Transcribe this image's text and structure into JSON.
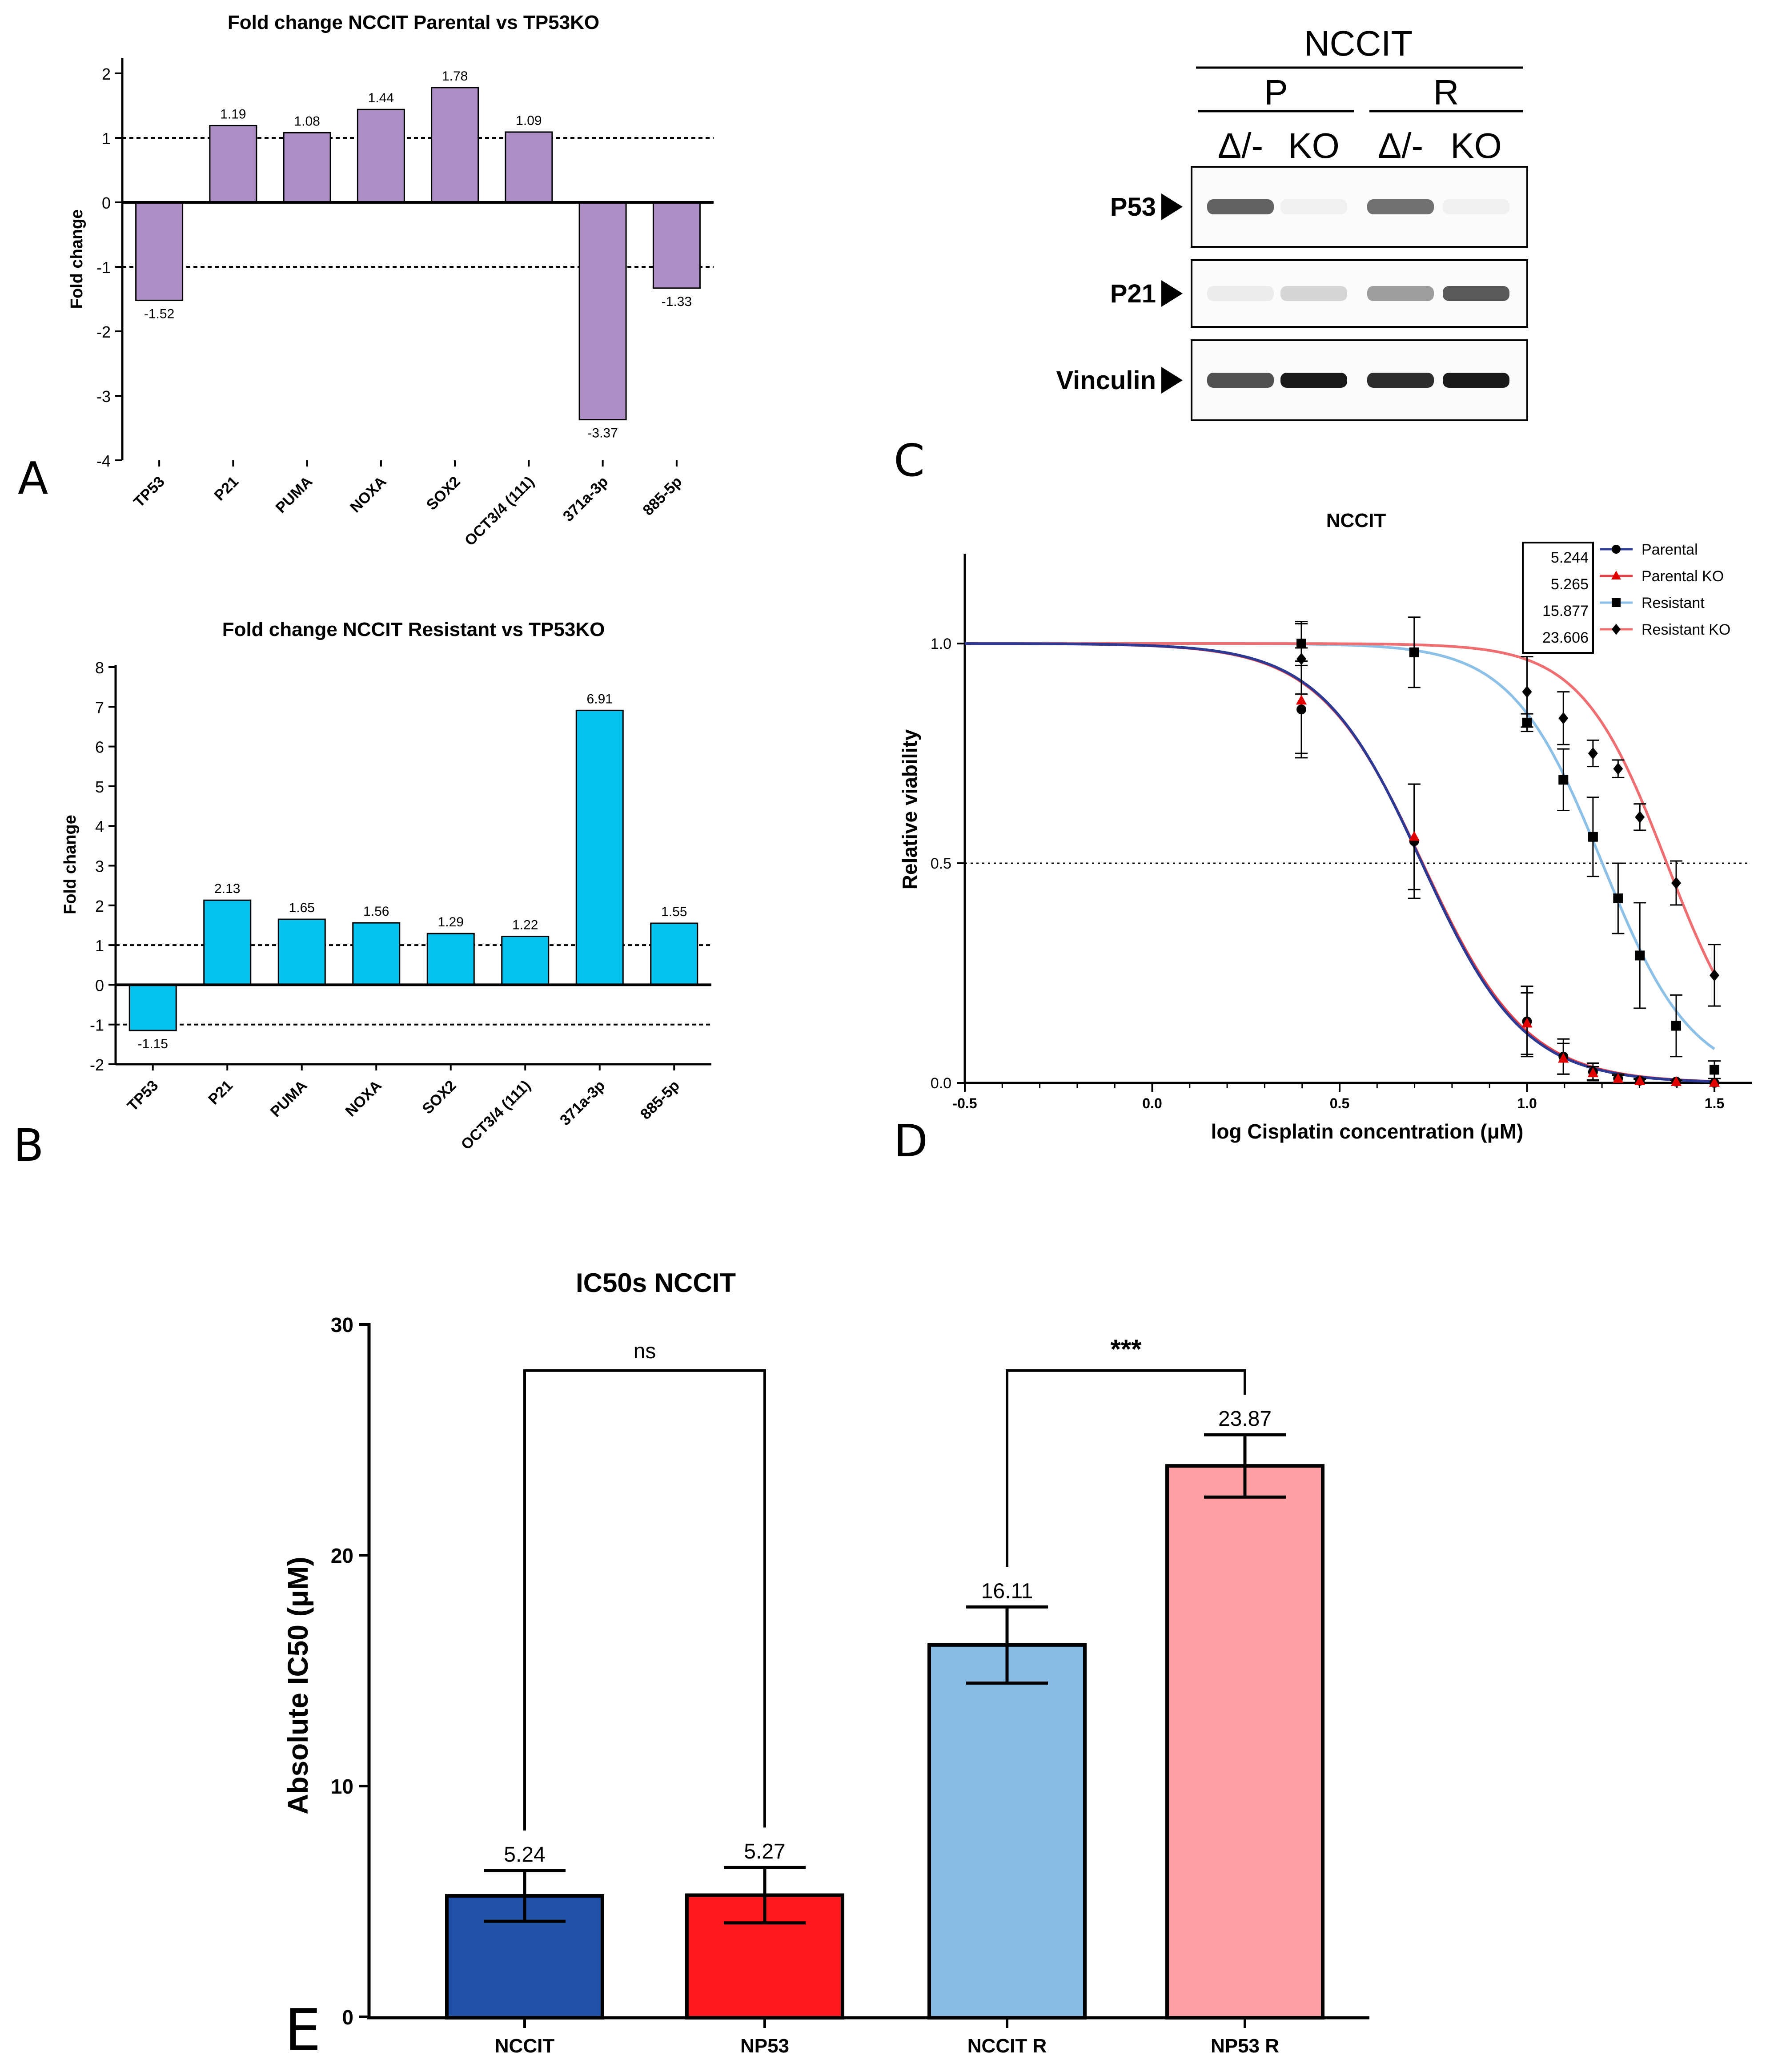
{
  "panel_labels": {
    "a": "A",
    "b": "B",
    "c": "C",
    "d": "D",
    "e": "E"
  },
  "colors": {
    "purple": "#AC8DC4",
    "cyan": "#06C2EE",
    "navy": "#2152A8",
    "red": "#FF1A1F",
    "lightblue": "#86BBE4",
    "pink": "#FF9FA4",
    "curve_navy": "#2C3A94",
    "curve_red": "#EE6E72",
    "curve_blue": "#8CC0E6",
    "black": "#000000"
  },
  "western_blot": {
    "cell_line": "NCCIT",
    "groups": [
      "P",
      "R"
    ],
    "lanes": [
      "Δ/-",
      "KO",
      "Δ/-",
      "KO"
    ],
    "proteins": [
      {
        "name": "P53",
        "intensities": [
          0.75,
          0.08,
          0.7,
          0.08
        ]
      },
      {
        "name": "P21",
        "intensities": [
          0.12,
          0.28,
          0.55,
          0.78
        ]
      },
      {
        "name": "Vinculin",
        "intensities": [
          0.8,
          0.95,
          0.9,
          0.95
        ]
      }
    ]
  },
  "chart_data": [
    {
      "id": "A",
      "type": "bar",
      "title": "Fold change NCCIT Parental vs TP53KO",
      "ylabel": "Fold change",
      "xlabel": "",
      "categories": [
        "TP53",
        "P21",
        "PUMA",
        "NOXA",
        "SOX2",
        "OCT3/4 (111)",
        "371a-3p",
        "885-5p"
      ],
      "values": [
        -1.52,
        1.19,
        1.08,
        1.44,
        1.78,
        1.09,
        -3.37,
        -1.33
      ],
      "value_labels": [
        "-1.52",
        "1.19",
        "1.08",
        "1.44",
        "1.78",
        "1.09",
        "-3.37",
        "-1.33"
      ],
      "ylim": [
        -4,
        2.2
      ],
      "yticks": [
        -4,
        -3,
        -2,
        -1,
        0,
        1,
        2
      ],
      "ytick_labels": [
        "-4",
        "-3",
        "-2",
        "-1",
        "0",
        "1",
        "2"
      ],
      "reference_lines": [
        1,
        -1
      ],
      "color": "#AC8DC4"
    },
    {
      "id": "B",
      "type": "bar",
      "title": "Fold change NCCIT Resistant vs TP53KO",
      "ylabel": "Fold change",
      "xlabel": "",
      "categories": [
        "TP53",
        "P21",
        "PUMA",
        "NOXA",
        "SOX2",
        "OCT3/4 (111)",
        "371a-3p",
        "885-5p"
      ],
      "values": [
        -1.15,
        2.13,
        1.65,
        1.56,
        1.29,
        1.22,
        6.91,
        1.55
      ],
      "value_labels": [
        "-1.15",
        "2.13",
        "1.65",
        "1.56",
        "1.29",
        "1.22",
        "6.91",
        "1.55"
      ],
      "ylim": [
        -2,
        8
      ],
      "yticks": [
        -2,
        -1,
        0,
        1,
        2,
        3,
        4,
        5,
        6,
        7,
        8
      ],
      "ytick_labels": [
        "-2",
        "-1",
        "0",
        "1",
        "2",
        "3",
        "4",
        "5",
        "6",
        "7",
        "8"
      ],
      "reference_lines": [
        1,
        -1
      ],
      "color": "#06C2EE"
    },
    {
      "id": "D",
      "type": "line",
      "title": "NCCIT",
      "xlabel": "log Cisplatin concentration (μM)",
      "ylabel": "Relative viability",
      "xlim": [
        -0.5,
        1.6
      ],
      "ylim": [
        0,
        1.2
      ],
      "xticks": [
        -0.5,
        0.0,
        0.5,
        1.0,
        1.5
      ],
      "xtick_labels": [
        "-0.5",
        "0.0",
        "0.5",
        "1.0",
        "1.5"
      ],
      "yticks": [
        0,
        0.5,
        1.0
      ],
      "ytick_labels": [
        "0.0",
        "0.5",
        "1.0"
      ],
      "reference_line_y": 0.5,
      "ic50_box": [
        "5.244",
        "5.265",
        "15.877",
        "23.606"
      ],
      "series": [
        {
          "name": "Parental",
          "marker": "circle",
          "curve_color": "#2C3A94",
          "marker_color": "#000000",
          "logIC50": 0.7197,
          "hill": 3.2,
          "x": [
            0.398,
            0.699,
            1.0,
            1.097,
            1.176,
            1.243,
            1.301,
            1.398,
            1.5
          ],
          "y": [
            0.85,
            0.55,
            0.14,
            0.06,
            0.025,
            0.01,
            0.005,
            0.003,
            0.0
          ],
          "err": [
            0.11,
            0.13,
            0.08,
            0.04,
            0.02,
            0.01,
            0.005,
            0.003,
            0.0
          ]
        },
        {
          "name": "Parental KO",
          "marker": "triangle",
          "curve_color": "#E8434A",
          "marker_color": "#E00000",
          "logIC50": 0.7214,
          "hill": 3.15,
          "x": [
            0.398,
            0.699,
            1.0,
            1.097,
            1.176,
            1.243,
            1.301,
            1.398,
            1.5
          ],
          "y": [
            0.87,
            0.56,
            0.135,
            0.055,
            0.022,
            0.009,
            0.004,
            0.002,
            0.0
          ],
          "err": [
            0.12,
            0.12,
            0.07,
            0.035,
            0.015,
            0.008,
            0.004,
            0.002,
            0.0
          ]
        },
        {
          "name": "Resistant",
          "marker": "square",
          "curve_color": "#8CC0E6",
          "marker_color": "#000000",
          "logIC50": 1.2008,
          "hill": 3.6,
          "x": [
            0.398,
            0.699,
            1.0,
            1.097,
            1.176,
            1.243,
            1.301,
            1.398,
            1.5
          ],
          "y": [
            1.0,
            0.98,
            0.82,
            0.69,
            0.56,
            0.42,
            0.29,
            0.13,
            0.03
          ],
          "err": [
            0.05,
            0.08,
            0.02,
            0.07,
            0.09,
            0.08,
            0.12,
            0.07,
            0.02
          ]
        },
        {
          "name": "Resistant KO",
          "marker": "diamond",
          "curve_color": "#EE6E72",
          "marker_color": "#000000",
          "logIC50": 1.373,
          "hill": 3.8,
          "x": [
            0.398,
            1.0,
            1.097,
            1.176,
            1.243,
            1.301,
            1.398,
            1.5
          ],
          "y": [
            0.965,
            0.89,
            0.83,
            0.75,
            0.715,
            0.605,
            0.455,
            0.245
          ],
          "err": [
            0.08,
            0.08,
            0.06,
            0.03,
            0.02,
            0.03,
            0.05,
            0.07
          ]
        }
      ]
    },
    {
      "id": "E",
      "type": "bar",
      "title": "IC50s NCCIT",
      "xlabel": "",
      "ylabel": "Absolute IC50 (μM)",
      "categories": [
        "NCCIT",
        "NP53",
        "NCCIT R",
        "NP53 R"
      ],
      "values": [
        5.24,
        5.27,
        16.11,
        23.87
      ],
      "value_labels": [
        "5.24",
        "5.27",
        "16.11",
        "23.87"
      ],
      "errors": [
        1.1,
        1.2,
        1.65,
        1.35
      ],
      "colors": [
        "#2152A8",
        "#FF1A1F",
        "#86BBE4",
        "#FF9FA4"
      ],
      "ylim": [
        0,
        30
      ],
      "yticks": [
        0,
        10,
        20,
        30
      ],
      "ytick_labels": [
        "0",
        "10",
        "20",
        "30"
      ],
      "significance": [
        {
          "pair": [
            0,
            1
          ],
          "label": "ns",
          "bracket_y": 28
        },
        {
          "pair": [
            2,
            3
          ],
          "label": "***",
          "bracket_y": 28
        }
      ]
    }
  ]
}
